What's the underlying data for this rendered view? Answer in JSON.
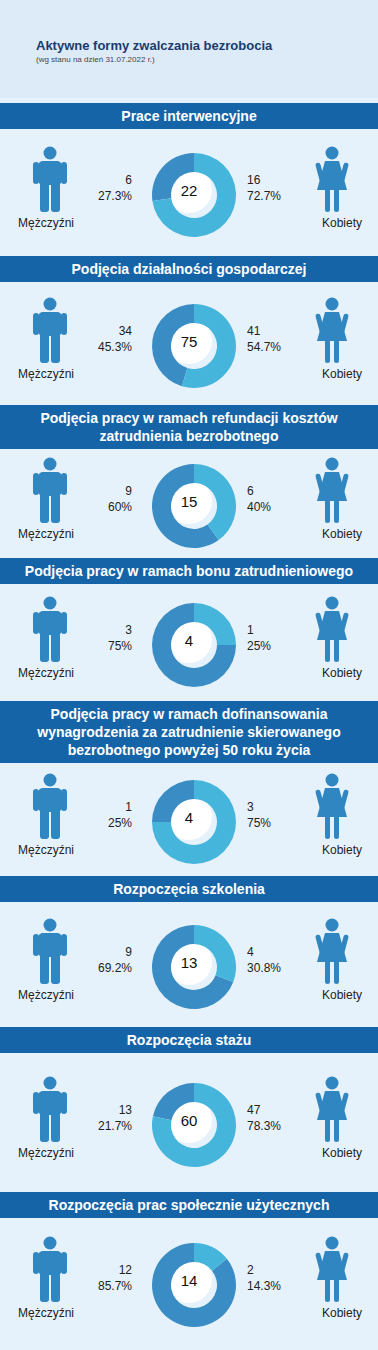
{
  "title": "Aktywne formy zwalczania bezrobocia",
  "subtitle": "(wg stanu na dzień 31.07.2022 r.)",
  "chart_data": [
    {
      "type": "pie",
      "title": "Prace interwencyjne",
      "categories": [
        "Mężczyźni",
        "Kobiety"
      ],
      "values": [
        6,
        16
      ],
      "percent_labels": [
        "27.3%",
        "72.7%"
      ],
      "total": 22,
      "colors": [
        "#3a8cc4",
        "#45b5dc"
      ],
      "data_labels": true
    },
    {
      "type": "pie",
      "title": "Podjęcia działalności gospodarczej",
      "categories": [
        "Mężczyźni",
        "Kobiety"
      ],
      "values": [
        34,
        41
      ],
      "percent_labels": [
        "45.3%",
        "54.7%"
      ],
      "total": 75,
      "colors": [
        "#3a8cc4",
        "#45b5dc"
      ],
      "data_labels": true
    },
    {
      "type": "pie",
      "title": "Podjęcia pracy w ramach refundacji kosztów zatrudnienia bezrobotnego",
      "categories": [
        "Mężczyźni",
        "Kobiety"
      ],
      "values": [
        9,
        6
      ],
      "percent_labels": [
        "60%",
        "40%"
      ],
      "total": 15,
      "colors": [
        "#3a8cc4",
        "#45b5dc"
      ],
      "data_labels": true
    },
    {
      "type": "pie",
      "title": "Podjęcia pracy w ramach bonu zatrudnieniowego",
      "categories": [
        "Mężczyźni",
        "Kobiety"
      ],
      "values": [
        3,
        1
      ],
      "percent_labels": [
        "75%",
        "25%"
      ],
      "total": 4,
      "colors": [
        "#3a8cc4",
        "#45b5dc"
      ],
      "data_labels": true
    },
    {
      "type": "pie",
      "title": "Podjęcia pracy w ramach dofinansowania wynagrodzenia za zatrudnienie skierowanego bezrobotnego powyżej 50 roku życia",
      "categories": [
        "Mężczyźni",
        "Kobiety"
      ],
      "values": [
        1,
        3
      ],
      "percent_labels": [
        "25%",
        "75%"
      ],
      "total": 4,
      "colors": [
        "#3a8cc4",
        "#45b5dc"
      ],
      "data_labels": true
    },
    {
      "type": "pie",
      "title": "Rozpoczęcia szkolenia",
      "categories": [
        "Mężczyźni",
        "Kobiety"
      ],
      "values": [
        9,
        4
      ],
      "percent_labels": [
        "69.2%",
        "30.8%"
      ],
      "total": 13,
      "colors": [
        "#3a8cc4",
        "#45b5dc"
      ],
      "data_labels": true
    },
    {
      "type": "pie",
      "title": "Rozpoczęcia stażu",
      "categories": [
        "Mężczyźni",
        "Kobiety"
      ],
      "values": [
        13,
        47
      ],
      "percent_labels": [
        "21.7%",
        "78.3%"
      ],
      "total": 60,
      "colors": [
        "#3a8cc4",
        "#45b5dc"
      ],
      "data_labels": true
    },
    {
      "type": "pie",
      "title": "Rozpoczęcia prac społecznie użytecznych",
      "categories": [
        "Mężczyźni",
        "Kobiety"
      ],
      "values": [
        12,
        2
      ],
      "percent_labels": [
        "85.7%",
        "14.3%"
      ],
      "total": 14,
      "colors": [
        "#3a8cc4",
        "#45b5dc"
      ],
      "data_labels": true
    }
  ]
}
